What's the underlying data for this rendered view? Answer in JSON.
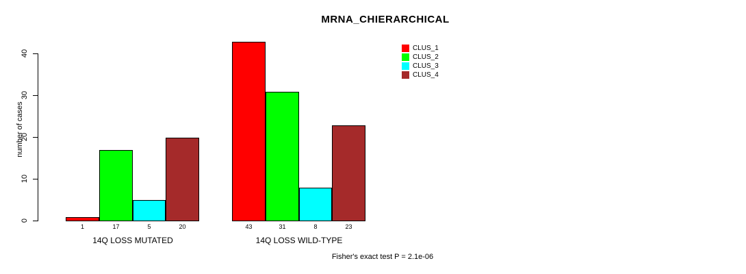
{
  "chart_data": {
    "type": "bar",
    "title": "MRNA_CHIERARCHICAL",
    "ylabel": "number of cases",
    "ylim": [
      0,
      43
    ],
    "yticks": [
      0,
      10,
      20,
      30,
      40
    ],
    "grid": false,
    "legend_position": "top-right",
    "bar_border_color": "#000000",
    "background_color": "#ffffff",
    "categories": [
      "14Q LOSS MUTATED",
      "14Q LOSS WILD-TYPE"
    ],
    "series": [
      {
        "name": "CLUS_1",
        "color": "#ff0000",
        "values": [
          1,
          43
        ]
      },
      {
        "name": "CLUS_2",
        "color": "#00ff00",
        "values": [
          17,
          31
        ]
      },
      {
        "name": "CLUS_3",
        "color": "#00ffff",
        "values": [
          5,
          8
        ]
      },
      {
        "name": "CLUS_4",
        "color": "#a52a2a",
        "values": [
          20,
          23
        ]
      }
    ],
    "groups": [
      {
        "label": "14Q LOSS MUTATED",
        "values": [
          1,
          17,
          5,
          20
        ]
      },
      {
        "label": "14Q LOSS WILD-TYPE",
        "values": [
          43,
          31,
          8,
          23
        ]
      }
    ],
    "value_labels": [
      [
        "1",
        "17",
        "5",
        "20"
      ],
      [
        "43",
        "31",
        "8",
        "23"
      ]
    ],
    "footnote": "Fisher's exact test P = 2.1e-06"
  }
}
